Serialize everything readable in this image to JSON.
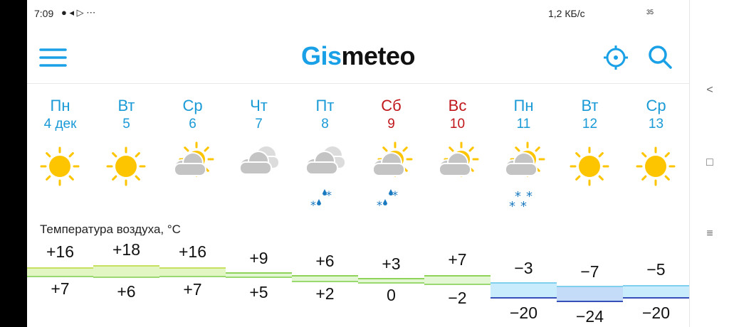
{
  "status_bar": {
    "time": "7:09",
    "network_speed": "1,2 КБ/с",
    "battery": "35",
    "icons": [
      "chat-icon",
      "telegram-icon",
      "play-icon",
      "more-icon"
    ]
  },
  "header": {
    "logo_part1": "Gis",
    "logo_part2": "meteo",
    "menu_icon": "hamburger-icon",
    "locate_icon": "crosshair-icon",
    "search_icon": "search-icon"
  },
  "colors": {
    "accent": "#1aa0e6",
    "weekend": "#c0171c",
    "weekday": "#1a9ad6"
  },
  "temperature_label": "Температура воздуха, °С",
  "days": [
    {
      "day": "Пн",
      "date": "4 дек",
      "weekend": false,
      "weather": "sunny",
      "max": "+16",
      "min": "+7"
    },
    {
      "day": "Вт",
      "date": "5",
      "weekend": false,
      "weather": "sunny",
      "max": "+18",
      "min": "+6"
    },
    {
      "day": "Ср",
      "date": "6",
      "weekend": false,
      "weather": "partly-cloudy",
      "max": "+16",
      "min": "+7"
    },
    {
      "day": "Чт",
      "date": "7",
      "weekend": false,
      "weather": "cloudy",
      "max": "+9",
      "min": "+5"
    },
    {
      "day": "Пт",
      "date": "8",
      "weekend": false,
      "weather": "cloudy-rain-snow",
      "max": "+6",
      "min": "+2"
    },
    {
      "day": "Сб",
      "date": "9",
      "weekend": true,
      "weather": "partly-cloudy-rain-snow",
      "max": "+3",
      "min": "0"
    },
    {
      "day": "Вс",
      "date": "10",
      "weekend": true,
      "weather": "partly-cloudy",
      "max": "+7",
      "min": "−2"
    },
    {
      "day": "Пн",
      "date": "11",
      "weekend": false,
      "weather": "partly-cloudy-snow",
      "max": "−3",
      "min": "−20"
    },
    {
      "day": "Вт",
      "date": "12",
      "weekend": false,
      "weather": "sunny",
      "max": "−7",
      "min": "−24"
    },
    {
      "day": "Ср",
      "date": "13",
      "weekend": false,
      "weather": "sunny",
      "max": "−5",
      "min": "−20"
    }
  ]
}
